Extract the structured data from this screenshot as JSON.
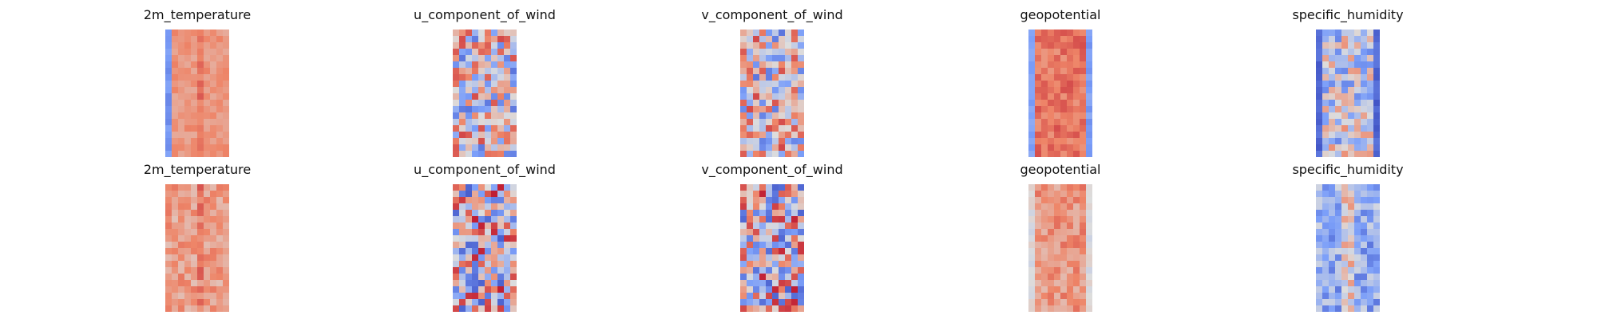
{
  "chart_data": [
    {
      "type": "heatmap",
      "title": "2m_temperature",
      "colormap": "coolwarm",
      "axes": "off",
      "row": 1,
      "col": 1
    },
    {
      "type": "heatmap",
      "title": "u_component_of_wind",
      "colormap": "coolwarm",
      "axes": "off",
      "row": 1,
      "col": 2
    },
    {
      "type": "heatmap",
      "title": "v_component_of_wind",
      "colormap": "coolwarm",
      "axes": "off",
      "row": 1,
      "col": 3
    },
    {
      "type": "heatmap",
      "title": "geopotential",
      "colormap": "coolwarm",
      "axes": "off",
      "row": 1,
      "col": 4
    },
    {
      "type": "heatmap",
      "title": "specific_humidity",
      "colormap": "coolwarm",
      "axes": "off",
      "row": 1,
      "col": 5
    },
    {
      "type": "heatmap",
      "title": "2m_temperature",
      "colormap": "coolwarm",
      "axes": "off",
      "row": 2,
      "col": 1
    },
    {
      "type": "heatmap",
      "title": "u_component_of_wind",
      "colormap": "coolwarm",
      "axes": "off",
      "row": 2,
      "col": 2
    },
    {
      "type": "heatmap",
      "title": "v_component_of_wind",
      "colormap": "coolwarm",
      "axes": "off",
      "row": 2,
      "col": 3
    },
    {
      "type": "heatmap",
      "title": "geopotential",
      "colormap": "coolwarm",
      "axes": "off",
      "row": 2,
      "col": 4
    },
    {
      "type": "heatmap",
      "title": "specific_humidity",
      "colormap": "coolwarm",
      "axes": "off",
      "row": 2,
      "col": 5
    }
  ]
}
